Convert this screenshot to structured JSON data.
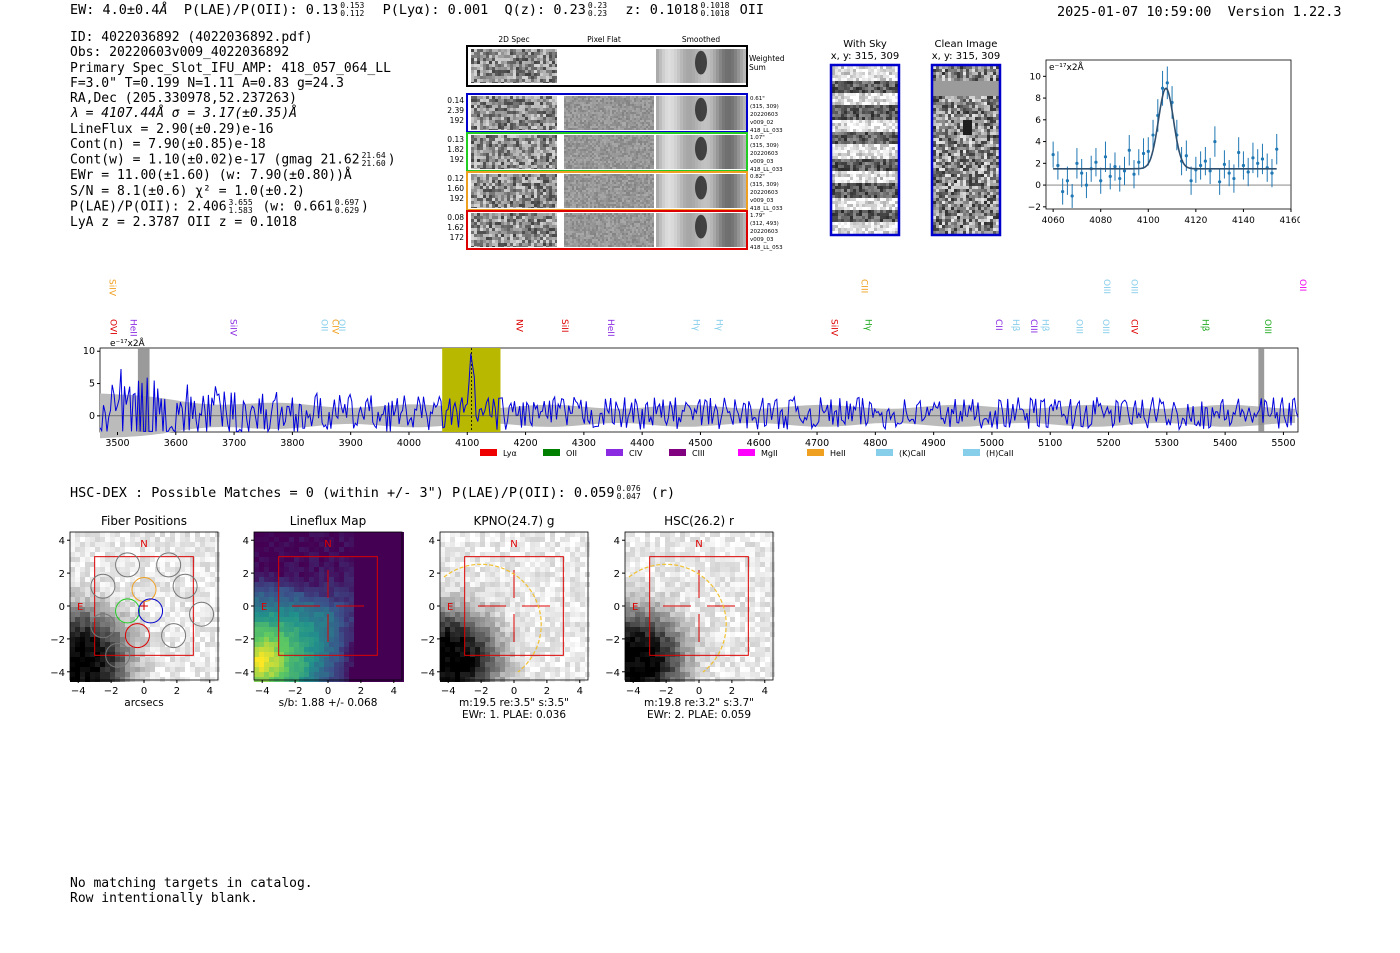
{
  "header": {
    "ew_label": "EW: 4.0±0.4",
    "ew_unit": "Å",
    "plae_label": "P(LAE)/P(OII): 0.13",
    "plae_hi": "0.153",
    "plae_lo": "0.112",
    "plya_label": "P(Lyα): 0.001",
    "qz_label": "Q(z): 0.23",
    "qz_hi": "0.23",
    "qz_lo": "0.23",
    "z_label": "z: 0.1018",
    "z_hi": "0.1018",
    "z_lo": "0.1018",
    "z_line": "OII",
    "timestamp": "2025-01-07 10:59:00",
    "version": "Version 1.22.3"
  },
  "info": {
    "id": "ID: 4022036892 (4022036892.pdf)",
    "obs": "Obs: 20220603v009_4022036892",
    "primary": "Primary Spec_Slot_IFU_AMP: 418_057_064_LL",
    "params": "F=3.0\"  T=0.199  N=1.11  A=0.83  g=24.3",
    "radec": "RA,Dec (205.330978,52.237263)",
    "lambda_sigma": "λ = 4107.44Å  σ = 3.17(±0.35)Å",
    "lineflux": "LineFlux = 2.90(±0.29)e-16",
    "cont_n": "Cont(n) = 7.90(±0.85)e-18",
    "cont_w": "Cont(w) = 1.10(±0.02)e-17 (gmag 21.62",
    "cont_w_hi": "21.64",
    "cont_w_lo": "21.60",
    "cont_w_end": ")",
    "ewr": "EWr = 11.00(±1.60) (w: 7.90(±0.80))Å",
    "sn": "S/N = 8.1(±0.6)  χ² = 1.0(±0.2)",
    "plae": "P(LAE)/P(OII): 2.406",
    "plae_hi": "3.655",
    "plae_lo": "1.583",
    "plae_w": "(w: 0.661",
    "plae_w_hi": "0.697",
    "plae_w_lo": "0.629",
    "plae_w_end": ")",
    "z_line": "LyA z = 2.3787   OII z = 0.1018"
  },
  "cutouts": {
    "col_headers": [
      "2D Spec",
      "Pixel Flat",
      "Smoothed"
    ],
    "weighted_sum": [
      "Weighted",
      "Sum"
    ],
    "rows": [
      {
        "left": [
          "0.14",
          "2.39",
          "192"
        ],
        "right": [
          "0.61\"",
          "(315, 309)",
          "20220603",
          "v009_02",
          "418_LL_033"
        ],
        "color": "#0000cc"
      },
      {
        "left": [
          "0.13",
          "1.82",
          "192"
        ],
        "right": [
          "1.07\"",
          "(315, 309)",
          "20220603",
          "v009_03",
          "418_LL_033"
        ],
        "color": "#22cc22"
      },
      {
        "left": [
          "0.12",
          "1.60",
          "192"
        ],
        "right": [
          "0.82\"",
          "(315, 309)",
          "20220603",
          "v009_03",
          "418_LL_033"
        ],
        "color": "#f0a020"
      },
      {
        "left": [
          "0.08",
          "1.62",
          "172"
        ],
        "right": [
          "1.79\"",
          "(312, 493)",
          "20220603",
          "v009_03",
          "418_LL_053"
        ],
        "color": "#dd0000"
      }
    ],
    "with_sky_title": "With Sky",
    "with_sky_coords": "x, y: 315, 309",
    "clean_title": "Clean Image",
    "clean_coords": "x, y: 315, 309"
  },
  "chart_data": [
    {
      "type": "line",
      "title": "",
      "ylabel": "e⁻¹⁷x2Å",
      "xlim": [
        4057,
        4160
      ],
      "ylim": [
        -2.2,
        11.5
      ],
      "x_ticks": [
        4060,
        4080,
        4100,
        4120,
        4140,
        4160
      ],
      "y_ticks": [
        -2,
        0,
        2,
        4,
        6,
        8,
        10
      ],
      "fit": {
        "center": 4107.44,
        "sigma": 3.17,
        "amplitude": 7.4,
        "continuum": 1.5
      },
      "x": [
        4060,
        4062,
        4064,
        4066,
        4068,
        4070,
        4072,
        4074,
        4076,
        4078,
        4080,
        4082,
        4084,
        4086,
        4088,
        4090,
        4092,
        4094,
        4096,
        4098,
        4100,
        4102,
        4104,
        4106,
        4108,
        4110,
        4112,
        4114,
        4116,
        4118,
        4120,
        4122,
        4124,
        4126,
        4128,
        4130,
        4132,
        4134,
        4136,
        4138,
        4140,
        4142,
        4144,
        4146,
        4148,
        4150,
        4152,
        4154
      ],
      "y": [
        2.8,
        1.8,
        -0.6,
        0.4,
        -1.0,
        2.0,
        1.1,
        0.0,
        1.5,
        2.1,
        0.4,
        2.6,
        0.8,
        1.7,
        0.6,
        1.3,
        3.2,
        1.0,
        2.1,
        2.9,
        3.1,
        4.6,
        6.4,
        8.9,
        9.4,
        7.6,
        4.6,
        2.2,
        2.7,
        0.4,
        1.4,
        1.8,
        2.2,
        1.3,
        4.0,
        0.3,
        1.9,
        1.1,
        0.6,
        3.0,
        1.8,
        1.2,
        2.5,
        2.0,
        2.4,
        1.6,
        1.1,
        3.3
      ],
      "yerr": [
        1.2,
        1.3,
        1.2,
        1.3,
        1.1,
        1.4,
        1.3,
        1.2,
        1.2,
        1.3,
        1.2,
        1.4,
        1.2,
        1.3,
        1.2,
        1.3,
        1.4,
        1.3,
        1.2,
        1.4,
        1.3,
        1.4,
        1.5,
        1.6,
        1.5,
        1.5,
        1.4,
        1.3,
        1.4,
        1.3,
        1.2,
        1.3,
        1.3,
        1.2,
        1.4,
        1.2,
        1.3,
        1.2,
        1.3,
        1.4,
        1.3,
        1.3,
        1.4,
        1.3,
        1.4,
        1.3,
        1.3,
        1.4
      ]
    },
    {
      "type": "line",
      "title": "",
      "ylabel": "e⁻¹⁷x2Å",
      "xlim": [
        3470,
        5525
      ],
      "ylim": [
        -2.5,
        10.5
      ],
      "x_ticks": [
        3500,
        3600,
        3700,
        3800,
        3900,
        4000,
        4100,
        4200,
        4300,
        4400,
        4500,
        4600,
        4700,
        4800,
        4900,
        5000,
        5100,
        5200,
        5300,
        5400,
        5500
      ],
      "y_ticks": [
        0,
        5,
        10
      ],
      "highlight": {
        "x0": 4057,
        "x1": 4157,
        "line": 4107.44
      },
      "gray_bands": [
        [
          3535,
          3555
        ],
        [
          5457,
          5467
        ]
      ],
      "line_labels_top": [
        {
          "name": "SiIV",
          "x": 3481,
          "color": "#f0a020"
        },
        {
          "name": "CIII",
          "x": 4771,
          "color": "#f0a020"
        },
        {
          "name": "OIII",
          "x": 5187,
          "color": "#87ceeb"
        },
        {
          "name": "OIII",
          "x": 5234,
          "color": "#87ceeb"
        },
        {
          "name": "OII",
          "x": 5523,
          "color": "#ee00ee"
        }
      ],
      "line_labels_mid": [
        {
          "name": "OVI",
          "x": 3483,
          "color": "#dd0000"
        },
        {
          "name": "HeII",
          "x": 3517,
          "color": "#8a2be2"
        },
        {
          "name": "SiIV",
          "x": 3689,
          "color": "#8a2be2"
        },
        {
          "name": "OII",
          "x": 3845,
          "color": "#87ceeb"
        },
        {
          "name": "CIV",
          "x": 3864,
          "color": "#f0a020"
        },
        {
          "name": "OII",
          "x": 3875,
          "color": "#87ceeb"
        },
        {
          "name": "NV",
          "x": 4179,
          "color": "#dd0000"
        },
        {
          "name": "SiII",
          "x": 4257,
          "color": "#dd0000"
        },
        {
          "name": "HeII",
          "x": 4336,
          "color": "#8a2be2"
        },
        {
          "name": "Hγ",
          "x": 4483,
          "color": "#87ceeb"
        },
        {
          "name": "Hγ",
          "x": 4522,
          "color": "#87ceeb"
        },
        {
          "name": "SiIV",
          "x": 4720,
          "color": "#dd0000"
        },
        {
          "name": "Hγ",
          "x": 4778,
          "color": "#22aa22"
        },
        {
          "name": "CII",
          "x": 5002,
          "color": "#8a2be2"
        },
        {
          "name": "Hβ",
          "x": 5031,
          "color": "#87ceeb"
        },
        {
          "name": "CIII",
          "x": 5062,
          "color": "#8a2be2"
        },
        {
          "name": "Hβ",
          "x": 5082,
          "color": "#87ceeb"
        },
        {
          "name": "OIII",
          "x": 5140,
          "color": "#87ceeb"
        },
        {
          "name": "OIII",
          "x": 5185,
          "color": "#87ceeb"
        },
        {
          "name": "CIV",
          "x": 5234,
          "color": "#dd0000"
        },
        {
          "name": "Hβ",
          "x": 5356,
          "color": "#22aa22"
        },
        {
          "name": "OIII",
          "x": 5463,
          "color": "#22aa22"
        }
      ],
      "legend": [
        {
          "name": "Lyα",
          "color": "#ee0000"
        },
        {
          "name": "OII",
          "color": "#008000"
        },
        {
          "name": "CIV",
          "color": "#8a2be2"
        },
        {
          "name": "CIII",
          "color": "#800080"
        },
        {
          "name": "MgII",
          "color": "#ff00ff"
        },
        {
          "name": "HeII",
          "color": "#f0a020"
        },
        {
          "name": "(K)CaII",
          "color": "#87ceeb"
        },
        {
          "name": "(H)CaII",
          "color": "#87ceeb"
        }
      ]
    }
  ],
  "hsc": {
    "line_prefix": "HSC-DEX : Possible Matches = 0 (within +/- 3\")  P(LAE)/P(OII): 0.059",
    "hi": "0.076",
    "lo": "0.047",
    "suffix": "(r)"
  },
  "panels": [
    {
      "title": "Fiber Positions",
      "caption": [
        "arcsecs"
      ]
    },
    {
      "title": "Lineflux Map",
      "caption": [
        "s/b: 1.88 +/- 0.068"
      ]
    },
    {
      "title": "KPNO(24.7) g",
      "caption": [
        "m:19.5  re:3.5\"  s:3.5\"",
        "EWr: 1. PLAE: 0.036"
      ]
    },
    {
      "title": "HSC(26.2) r",
      "caption": [
        "m:19.8  re:3.2\"  s:3.7\"",
        "EWr: 2. PLAE: 0.059"
      ]
    }
  ],
  "panel_axes": {
    "ticks": [
      "−4",
      "−2",
      "0",
      "2",
      "4"
    ],
    "north": "N",
    "east": "E"
  },
  "footer": {
    "line1": "No matching targets in catalog.",
    "line2": "Row intentionally blank."
  }
}
